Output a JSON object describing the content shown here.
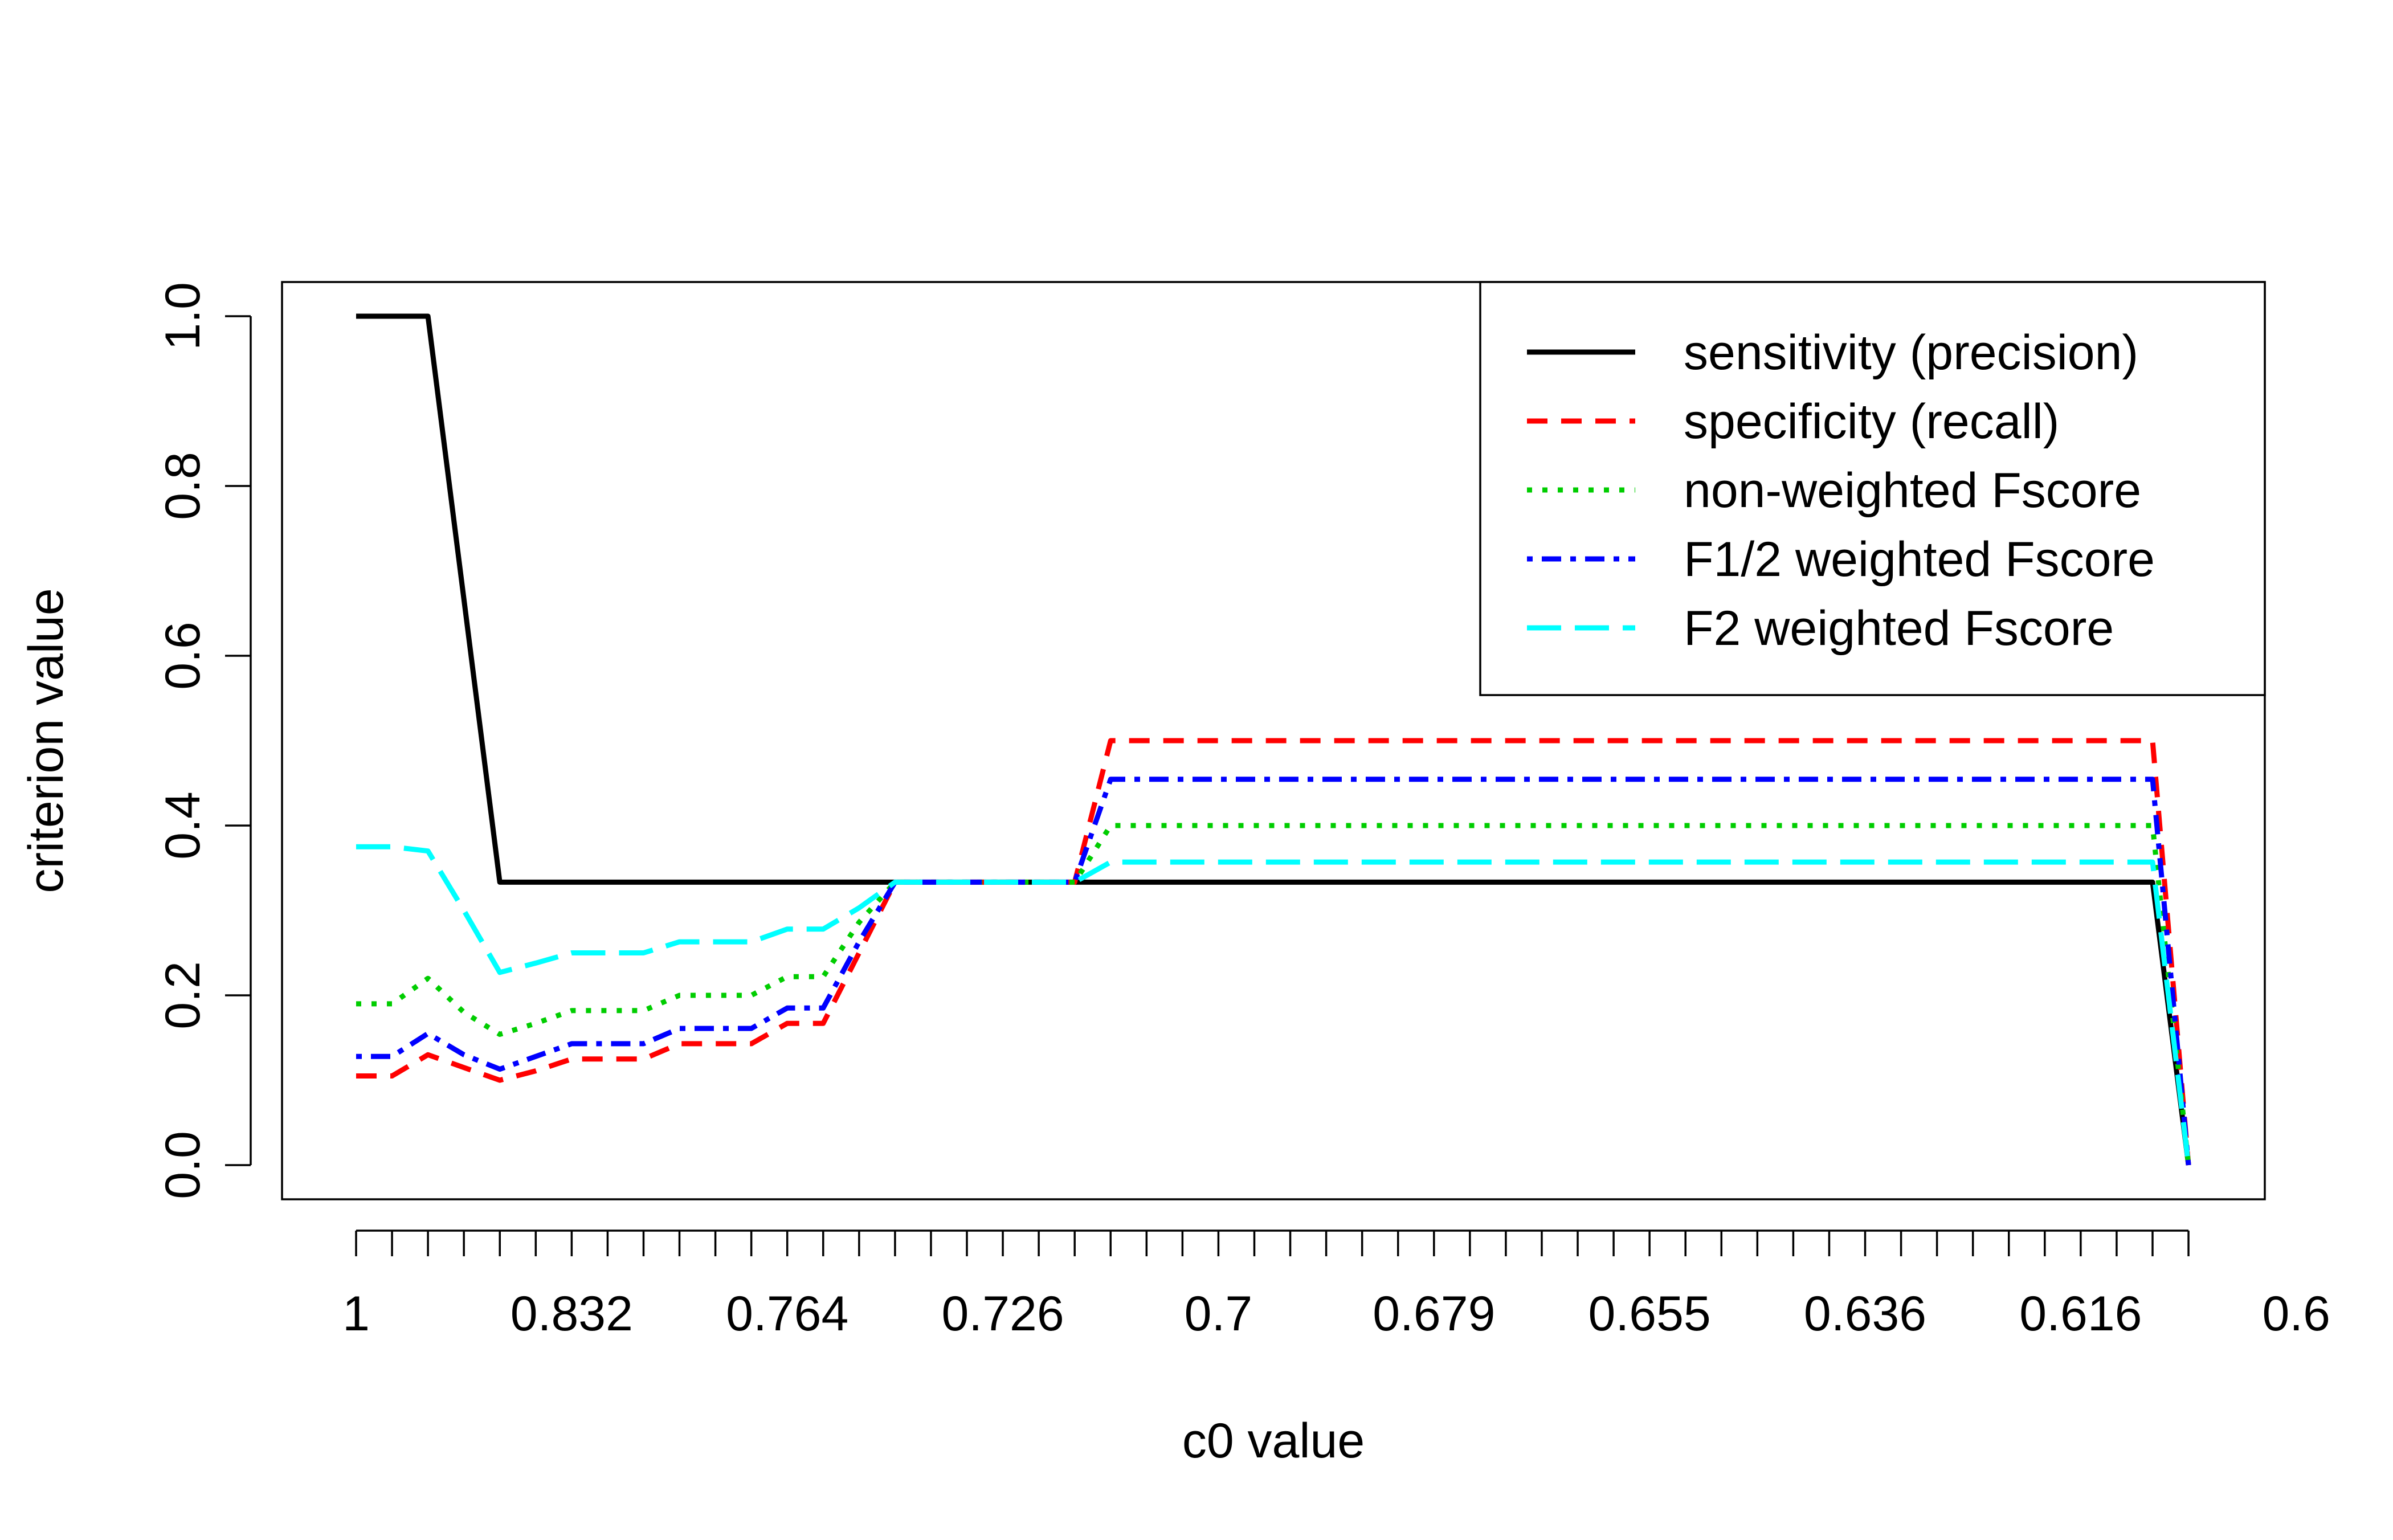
{
  "chart_data": {
    "type": "line",
    "xlabel": "c0 value",
    "ylabel": "criterion value",
    "ylim": [
      0,
      1
    ],
    "y_ticks": [
      "0.0",
      "0.2",
      "0.4",
      "0.6",
      "0.8",
      "1.0"
    ],
    "x_ticks": [
      "1",
      "0.832",
      "0.764",
      "0.726",
      "0.7",
      "0.679",
      "0.655",
      "0.636",
      "0.616",
      "0.6"
    ],
    "n_points": 52,
    "grid": false,
    "legend_position": "top-right",
    "series": [
      {
        "name": "sensitivity (precision)",
        "color": "#000000",
        "style": "solid",
        "values": [
          1,
          1,
          1,
          0.6667,
          0.3333,
          0.3333,
          0.3333,
          0.3333,
          0.3333,
          0.3333,
          0.3333,
          0.3333,
          0.3333,
          0.3333,
          0.3333,
          0.3333,
          0.3333,
          0.3333,
          0.3333,
          0.3333,
          0.3333,
          0.3333,
          0.3333,
          0.3333,
          0.3333,
          0.3333,
          0.3333,
          0.3333,
          0.3333,
          0.3333,
          0.3333,
          0.3333,
          0.3333,
          0.3333,
          0.3333,
          0.3333,
          0.3333,
          0.3333,
          0.3333,
          0.3333,
          0.3333,
          0.3333,
          0.3333,
          0.3333,
          0.3333,
          0.3333,
          0.3333,
          0.3333,
          0.3333,
          0.3333,
          0.3333,
          0
        ]
      },
      {
        "name": "specificity (recall)",
        "color": "#ff0000",
        "style": "dashed",
        "values": [
          0.105,
          0.105,
          0.13,
          0.115,
          0.1,
          0.111,
          0.125,
          0.125,
          0.125,
          0.143,
          0.143,
          0.143,
          0.167,
          0.167,
          0.25,
          0.3333,
          0.3333,
          0.3333,
          0.3333,
          0.3333,
          0.3333,
          0.5,
          0.5,
          0.5,
          0.5,
          0.5,
          0.5,
          0.5,
          0.5,
          0.5,
          0.5,
          0.5,
          0.5,
          0.5,
          0.5,
          0.5,
          0.5,
          0.5,
          0.5,
          0.5,
          0.5,
          0.5,
          0.5,
          0.5,
          0.5,
          0.5,
          0.5,
          0.5,
          0.5,
          0.5,
          0.5,
          0
        ]
      },
      {
        "name": "non-weighted Fscore",
        "color": "#00cd00",
        "style": "dotted",
        "values": [
          0.19,
          0.19,
          0.22,
          0.18,
          0.154,
          0.167,
          0.182,
          0.182,
          0.182,
          0.2,
          0.2,
          0.2,
          0.222,
          0.222,
          0.286,
          0.3333,
          0.3333,
          0.3333,
          0.3333,
          0.3333,
          0.3333,
          0.4,
          0.4,
          0.4,
          0.4,
          0.4,
          0.4,
          0.4,
          0.4,
          0.4,
          0.4,
          0.4,
          0.4,
          0.4,
          0.4,
          0.4,
          0.4,
          0.4,
          0.4,
          0.4,
          0.4,
          0.4,
          0.4,
          0.4,
          0.4,
          0.4,
          0.4,
          0.4,
          0.4,
          0.4,
          0.4,
          0
        ]
      },
      {
        "name": "F1/2 weighted Fscore",
        "color": "#0000ff",
        "style": "dotdash",
        "values": [
          0.128,
          0.128,
          0.155,
          0.13,
          0.113,
          0.128,
          0.143,
          0.143,
          0.143,
          0.161,
          0.161,
          0.161,
          0.185,
          0.185,
          0.263,
          0.3333,
          0.3333,
          0.3333,
          0.3333,
          0.3333,
          0.3333,
          0.4545,
          0.4545,
          0.4545,
          0.4545,
          0.4545,
          0.4545,
          0.4545,
          0.4545,
          0.4545,
          0.4545,
          0.4545,
          0.4545,
          0.4545,
          0.4545,
          0.4545,
          0.4545,
          0.4545,
          0.4545,
          0.4545,
          0.4545,
          0.4545,
          0.4545,
          0.4545,
          0.4545,
          0.4545,
          0.4545,
          0.4545,
          0.4545,
          0.4545,
          0.4545,
          0
        ]
      },
      {
        "name": "F2 weighted Fscore",
        "color": "#00ffff",
        "style": "longdash",
        "values": [
          0.375,
          0.375,
          0.37,
          0.3,
          0.227,
          0.238,
          0.25,
          0.25,
          0.25,
          0.263,
          0.263,
          0.263,
          0.278,
          0.278,
          0.303,
          0.3333,
          0.3333,
          0.3333,
          0.3333,
          0.3333,
          0.3333,
          0.357,
          0.357,
          0.357,
          0.357,
          0.357,
          0.357,
          0.357,
          0.357,
          0.357,
          0.357,
          0.357,
          0.357,
          0.357,
          0.357,
          0.357,
          0.357,
          0.357,
          0.357,
          0.357,
          0.357,
          0.357,
          0.357,
          0.357,
          0.357,
          0.357,
          0.357,
          0.357,
          0.357,
          0.357,
          0.357,
          0
        ]
      }
    ]
  }
}
